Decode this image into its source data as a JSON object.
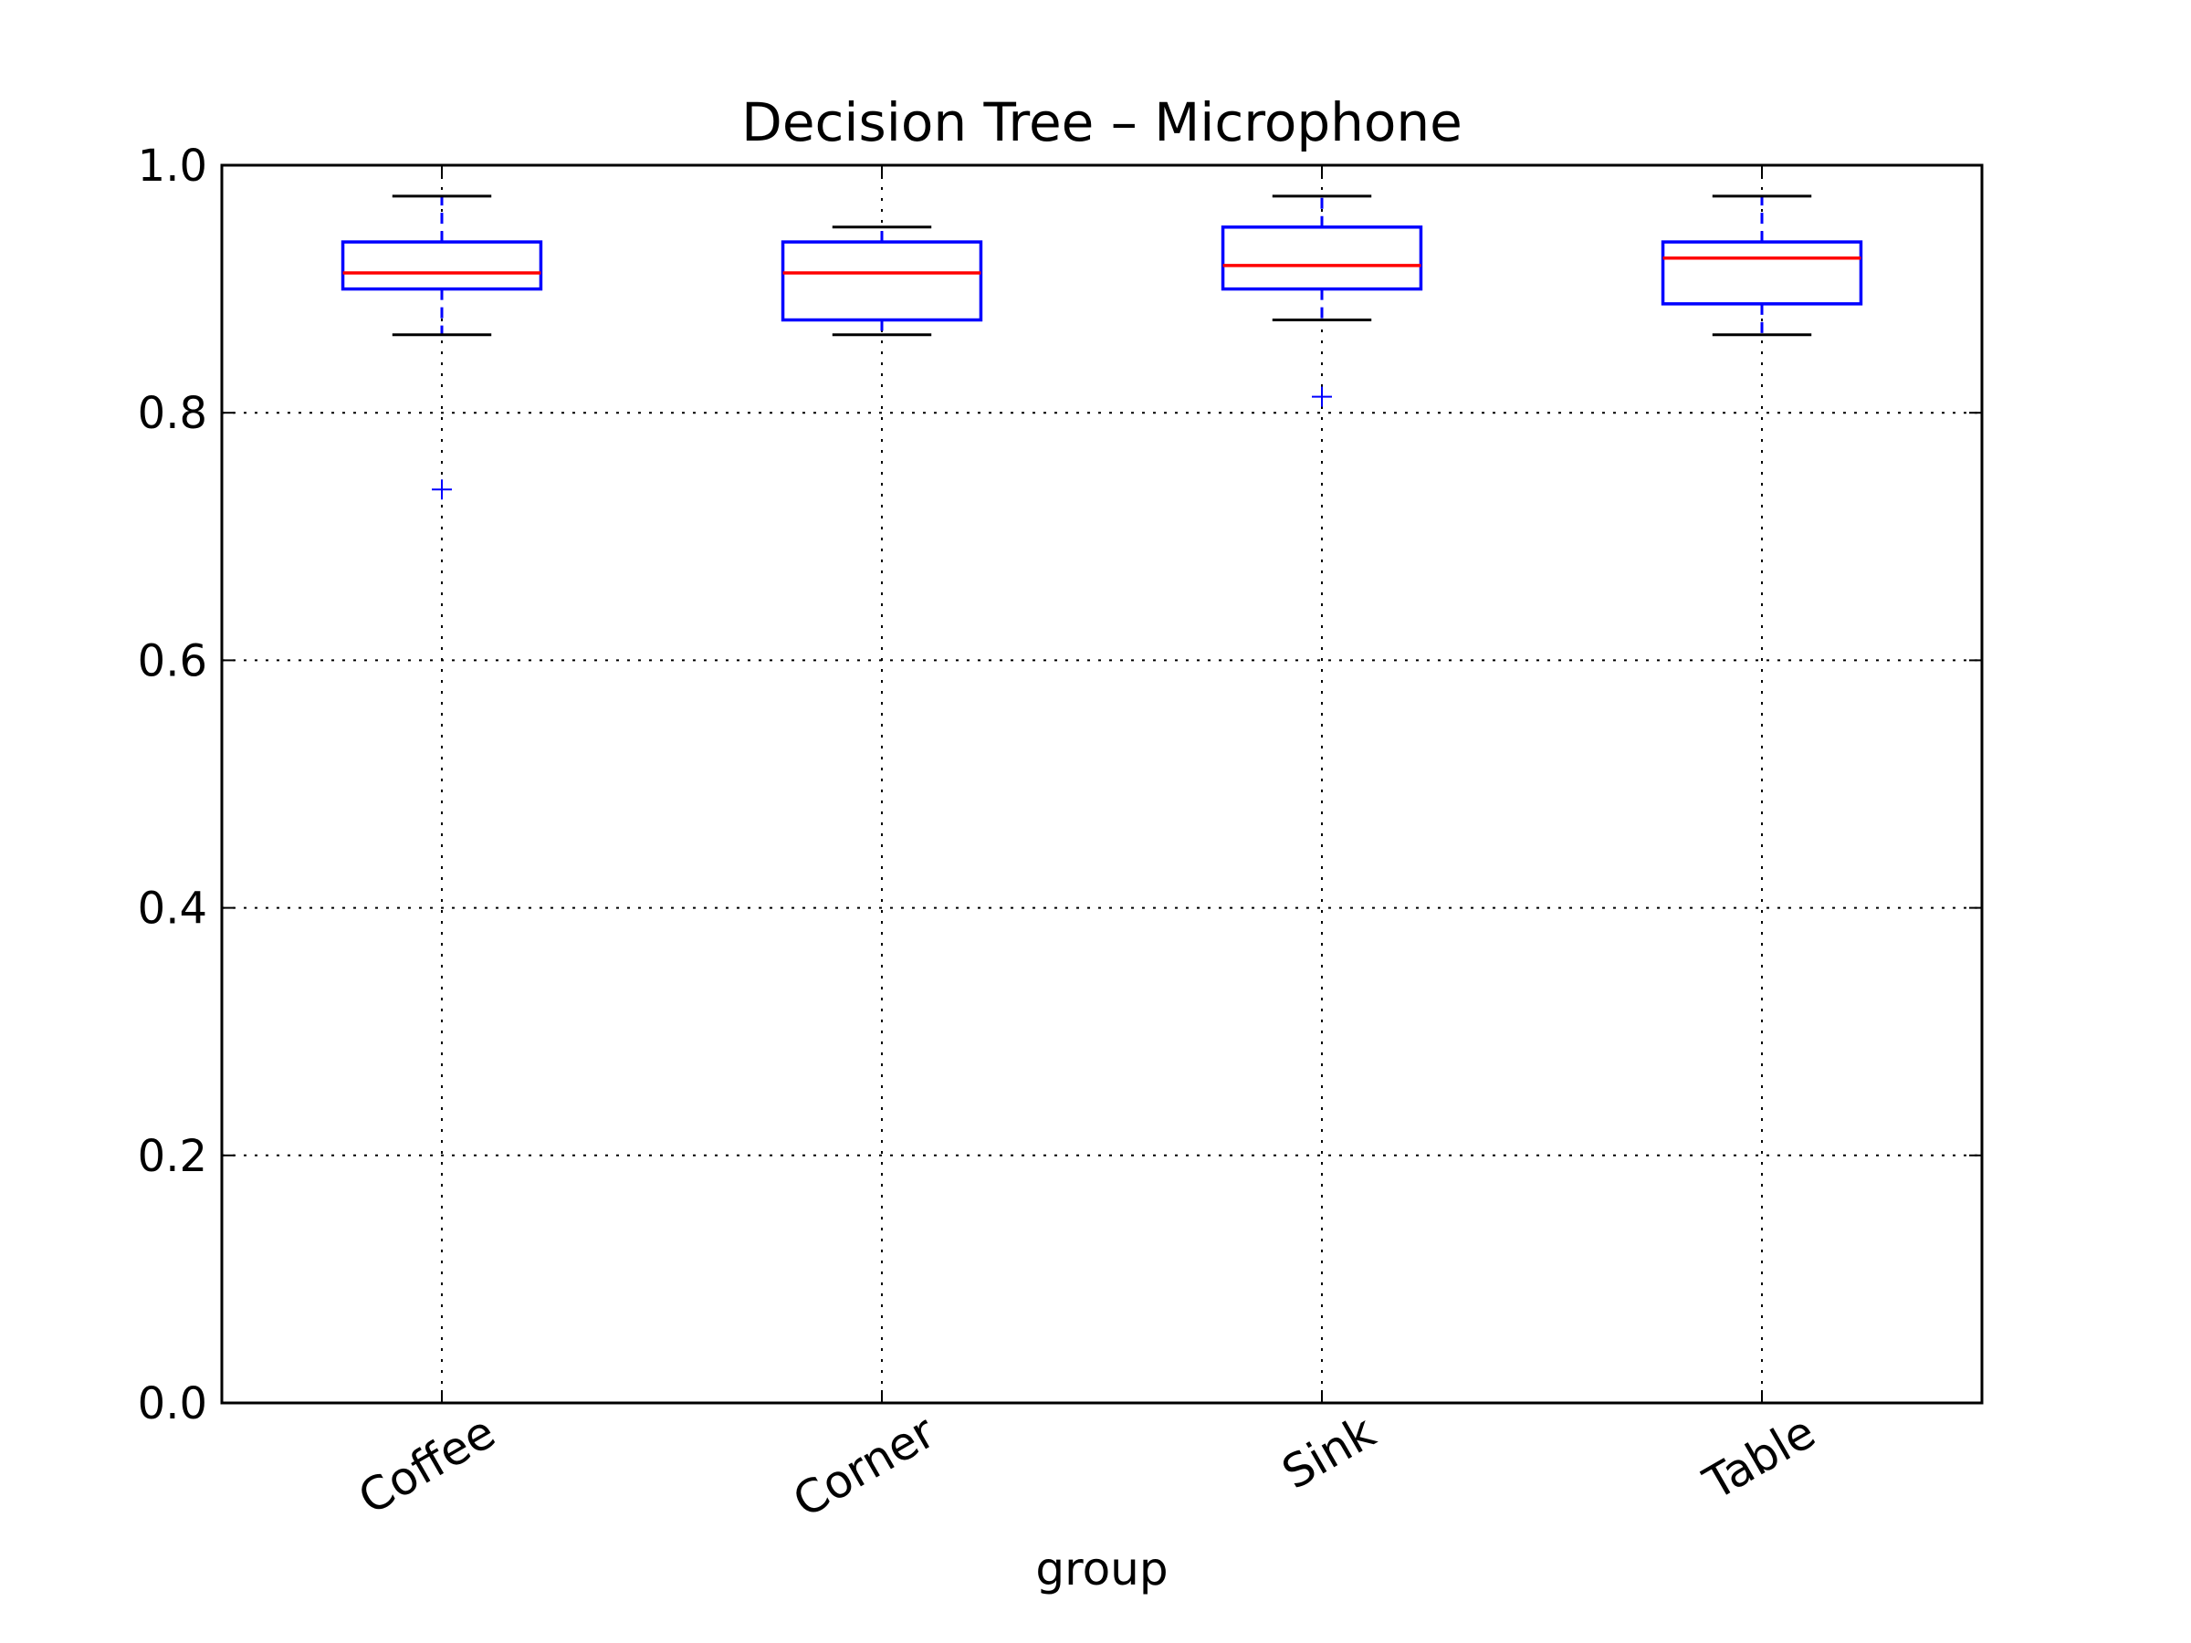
{
  "chart_data": {
    "type": "box",
    "title": "Decision Tree – Microphone",
    "xlabel": "group",
    "ylabel": "",
    "ylim": [
      0.0,
      1.0
    ],
    "yticks": [
      "0.0",
      "0.2",
      "0.4",
      "0.6",
      "0.8",
      "1.0"
    ],
    "grid": true,
    "categories": [
      "Coffee",
      "Corner",
      "Sink",
      "Table"
    ],
    "boxes": [
      {
        "name": "Coffee",
        "whisker_low": 0.863,
        "q1": 0.9,
        "median": 0.913,
        "q3": 0.938,
        "whisker_high": 0.975,
        "outliers": [
          0.738
        ]
      },
      {
        "name": "Corner",
        "whisker_low": 0.863,
        "q1": 0.875,
        "median": 0.913,
        "q3": 0.938,
        "whisker_high": 0.95,
        "outliers": []
      },
      {
        "name": "Sink",
        "whisker_low": 0.875,
        "q1": 0.9,
        "median": 0.919,
        "q3": 0.95,
        "whisker_high": 0.975,
        "outliers": [
          0.813
        ]
      },
      {
        "name": "Table",
        "whisker_low": 0.863,
        "q1": 0.888,
        "median": 0.925,
        "q3": 0.938,
        "whisker_high": 0.975,
        "outliers": []
      }
    ],
    "colors": {
      "box": "#0000ff",
      "median": "#ff0000",
      "whisker_cap": "#000000",
      "outlier": "#0000ff"
    }
  }
}
